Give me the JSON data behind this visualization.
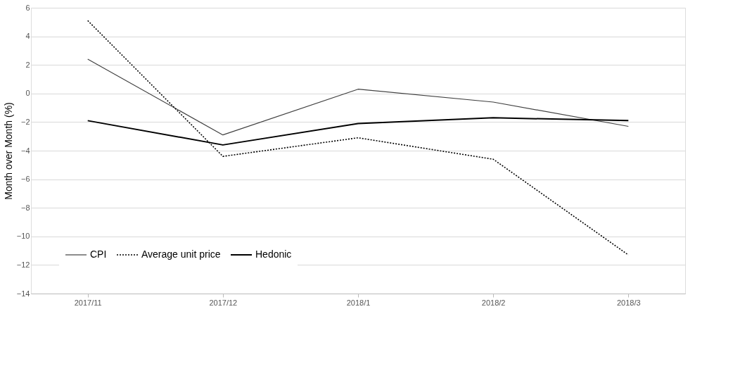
{
  "chart_data": {
    "type": "line",
    "ylabel": "Month over Month (%)",
    "categories": [
      "2017/11",
      "2017/12",
      "2018/1",
      "2018/2",
      "2018/3"
    ],
    "ylim": [
      -14,
      6
    ],
    "yticks": [
      -14,
      -12,
      -10,
      -8,
      -6,
      -4,
      -2,
      0,
      2,
      4,
      6
    ],
    "grid": "y",
    "legend": "bottom left",
    "marker": "none",
    "series": [
      {
        "name": "CPI",
        "color": "#404040",
        "line_style": "solid",
        "values": [
          2.4,
          -2.9,
          0.3,
          -0.6,
          -2.3
        ]
      },
      {
        "name": "Average unit price",
        "color": "#000000",
        "line_style": "dotted",
        "values": [
          5.1,
          -4.4,
          -3.1,
          -4.6,
          -11.3
        ]
      },
      {
        "name": "Hedonic",
        "color": "#000000",
        "line_style": "solid",
        "values": [
          -1.9,
          -3.6,
          -2.1,
          -1.7,
          -1.9
        ]
      }
    ]
  }
}
